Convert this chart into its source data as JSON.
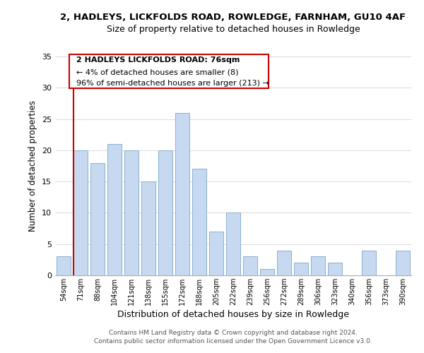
{
  "title1": "2, HADLEYS, LICKFOLDS ROAD, ROWLEDGE, FARNHAM, GU10 4AF",
  "title2": "Size of property relative to detached houses in Rowledge",
  "xlabel": "Distribution of detached houses by size in Rowledge",
  "ylabel": "Number of detached properties",
  "bar_labels": [
    "54sqm",
    "71sqm",
    "88sqm",
    "104sqm",
    "121sqm",
    "138sqm",
    "155sqm",
    "172sqm",
    "188sqm",
    "205sqm",
    "222sqm",
    "239sqm",
    "256sqm",
    "272sqm",
    "289sqm",
    "306sqm",
    "323sqm",
    "340sqm",
    "356sqm",
    "373sqm",
    "390sqm"
  ],
  "bar_values": [
    3,
    20,
    18,
    21,
    20,
    15,
    20,
    26,
    17,
    7,
    10,
    3,
    1,
    4,
    2,
    3,
    2,
    0,
    4,
    0,
    4
  ],
  "bar_color": "#c6d9f0",
  "bar_edge_color": "#8ab0d0",
  "highlight_color": "#cc0000",
  "ylim": [
    0,
    35
  ],
  "yticks": [
    0,
    5,
    10,
    15,
    20,
    25,
    30,
    35
  ],
  "annotation_title": "2 HADLEYS LICKFOLDS ROAD: 76sqm",
  "annotation_line1": "← 4% of detached houses are smaller (8)",
  "annotation_line2": "96% of semi-detached houses are larger (213) →",
  "annotation_box_color": "#ffffff",
  "annotation_box_edge": "#cc0000",
  "footer1": "Contains HM Land Registry data © Crown copyright and database right 2024.",
  "footer2": "Contains public sector information licensed under the Open Government Licence v3.0."
}
